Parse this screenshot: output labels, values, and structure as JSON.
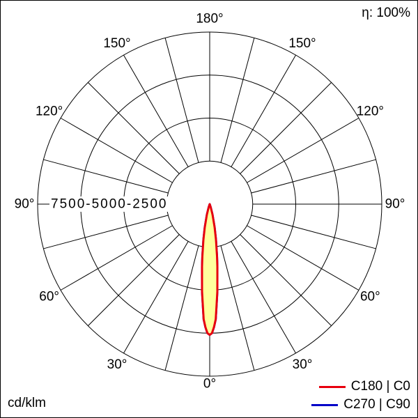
{
  "meta": {
    "efficiency_label": "η: 100%",
    "unit_label": "cd/klm"
  },
  "legend": [
    {
      "label": "C180 | C0",
      "color": "#e8000d"
    },
    {
      "label": "C270 | C90",
      "color": "#0000c8"
    }
  ],
  "chart_data": {
    "type": "line",
    "subtype": "polar-intensity-distribution",
    "unit": "cd/klm",
    "efficiency": "η: 100%",
    "orientation": "0° at bottom, 180° at top, symmetric left/right",
    "angle_labels_deg": [
      0,
      30,
      60,
      90,
      120,
      150,
      180
    ],
    "spoke_step_deg": 15,
    "rings": [
      2500,
      5000,
      7500,
      10000
    ],
    "ring_axis_label": "7500-5000-2500",
    "rmax": 10000,
    "grid": true,
    "legend_position": "bottom-right",
    "series": [
      {
        "name": "C180 | C0",
        "color": "#e8000d",
        "fill": "#ffff9e",
        "points": [
          [
            -20,
            0
          ],
          [
            -18,
            200
          ],
          [
            -15,
            630
          ],
          [
            -12,
            1370
          ],
          [
            -10,
            2100
          ],
          [
            -8,
            3060
          ],
          [
            -7,
            3660
          ],
          [
            -6,
            4270
          ],
          [
            -5,
            5100
          ],
          [
            -4,
            5800
          ],
          [
            -3,
            6700
          ],
          [
            -2,
            7150
          ],
          [
            -1,
            7500
          ],
          [
            0,
            7600
          ],
          [
            1,
            7500
          ],
          [
            2,
            7150
          ],
          [
            3,
            6700
          ],
          [
            4,
            5800
          ],
          [
            5,
            5100
          ],
          [
            6,
            4270
          ],
          [
            7,
            3660
          ],
          [
            8,
            3060
          ],
          [
            10,
            2100
          ],
          [
            12,
            1370
          ],
          [
            15,
            630
          ],
          [
            18,
            200
          ],
          [
            20,
            0
          ]
        ]
      },
      {
        "name": "C270 | C90",
        "color": "#0000c8",
        "fill": "none",
        "points": [
          [
            -20,
            0
          ],
          [
            -18,
            200
          ],
          [
            -15,
            630
          ],
          [
            -12,
            1370
          ],
          [
            -10,
            2100
          ],
          [
            -8,
            3060
          ],
          [
            -7,
            3660
          ],
          [
            -6,
            4270
          ],
          [
            -5,
            5100
          ],
          [
            -4,
            5800
          ],
          [
            -3,
            6700
          ],
          [
            -2,
            7150
          ],
          [
            -1,
            7500
          ],
          [
            0,
            7600
          ],
          [
            1,
            7500
          ],
          [
            2,
            7150
          ],
          [
            3,
            6700
          ],
          [
            4,
            5800
          ],
          [
            5,
            5100
          ],
          [
            6,
            4270
          ],
          [
            7,
            3660
          ],
          [
            8,
            3060
          ],
          [
            10,
            2100
          ],
          [
            12,
            1370
          ],
          [
            15,
            630
          ],
          [
            18,
            200
          ],
          [
            20,
            0
          ]
        ]
      }
    ]
  }
}
